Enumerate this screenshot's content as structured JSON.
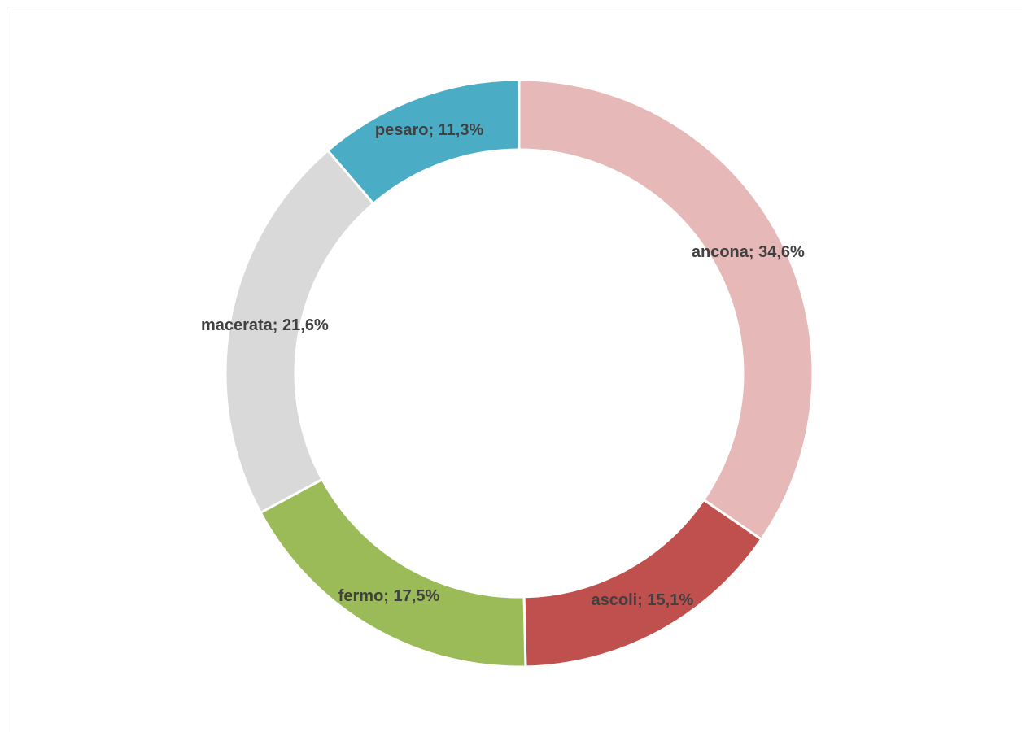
{
  "chart_data": {
    "type": "donut",
    "categories": [
      "ancona",
      "ascoli",
      "fermo",
      "macerata",
      "pesaro"
    ],
    "values": [
      34.6,
      15.1,
      17.5,
      21.6,
      11.3
    ],
    "value_labels": [
      "ancona; 34,6%",
      "ascoli; 15,1%",
      "fermo; 17,5%",
      "macerata; 21,6%",
      "pesaro; 11,3%"
    ],
    "colors": [
      "#e6b8b7",
      "#c0504d",
      "#9bbb59",
      "#d9d9d9",
      "#4bacc6"
    ]
  }
}
